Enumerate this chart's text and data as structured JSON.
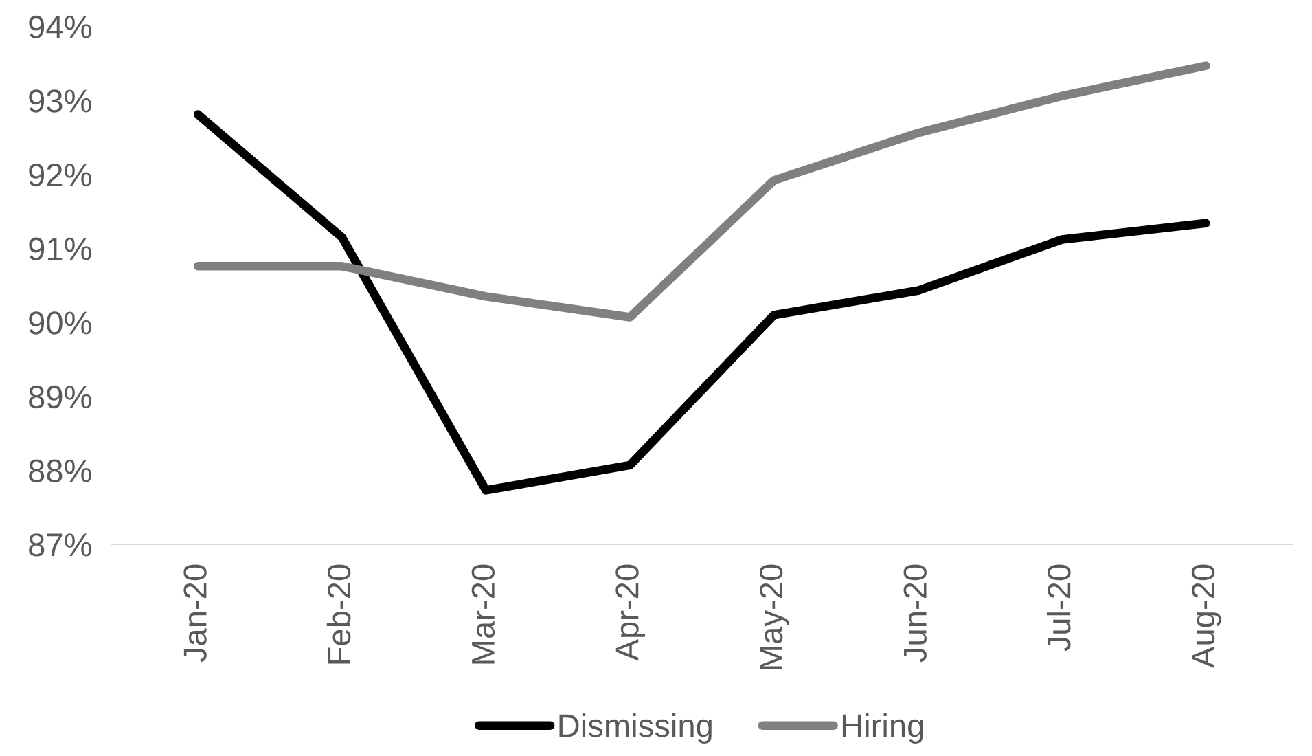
{
  "chart_data": {
    "type": "line",
    "categories": [
      "Jan-20",
      "Feb-20",
      "Mar-20",
      "Apr-20",
      "May-20",
      "Jun-20",
      "Jul-20",
      "Aug-20"
    ],
    "series": [
      {
        "name": "Dismissing",
        "color": "#000000",
        "values": [
          92.81,
          91.15,
          87.73,
          88.07,
          90.1,
          90.43,
          91.12,
          91.34
        ]
      },
      {
        "name": "Hiring",
        "color": "#808080",
        "values": [
          90.76,
          90.76,
          90.35,
          90.07,
          91.92,
          92.56,
          93.06,
          93.47
        ]
      }
    ],
    "ylim": [
      87,
      94
    ],
    "yticks": [
      {
        "value": 87,
        "label": "87%"
      },
      {
        "value": 88,
        "label": "88%"
      },
      {
        "value": 89,
        "label": "89%"
      },
      {
        "value": 90,
        "label": "90%"
      },
      {
        "value": 91,
        "label": "91%"
      },
      {
        "value": 92,
        "label": "92%"
      },
      {
        "value": 93,
        "label": "93%"
      },
      {
        "value": 94,
        "label": "94%"
      }
    ],
    "grid": false,
    "legend": "bottom",
    "marker": "none",
    "line_style": "solid"
  }
}
